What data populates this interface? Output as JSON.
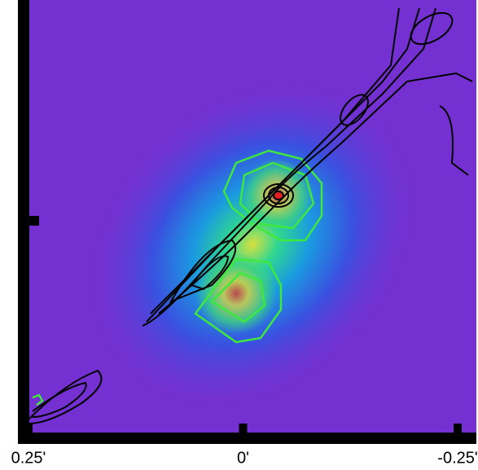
{
  "chart_data": {
    "type": "image",
    "xlim": [
      0.25,
      -0.25
    ],
    "xticks": [
      {
        "value": 0.25,
        "label": "0.25'"
      },
      {
        "value": 0,
        "label": "0'"
      },
      {
        "value": -0.25,
        "label": "-0.25'"
      }
    ]
  }
}
